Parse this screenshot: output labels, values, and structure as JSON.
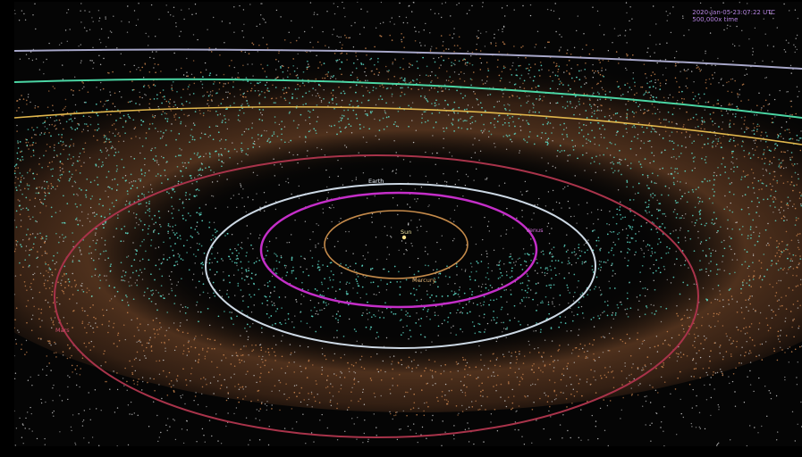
{
  "hud": {
    "timestamp": "2020-Jan-05 23:07:22 UTC",
    "speed": "500,000x time"
  },
  "labels": {
    "sun": "Sun",
    "mercury": "Mercury",
    "venus": "Venus",
    "earth": "Earth",
    "mars": "Mars"
  },
  "colors": {
    "background": "#000000",
    "asteroid_inner": "#4fd6c0",
    "asteroid_belt": "#c87a48",
    "neptune": "#a7a7c9",
    "uranus": "#4bd6a4",
    "saturn": "#e0b64c",
    "mars": "#a8334a",
    "earth": "#cdd9e5",
    "venus": "#c42ec8",
    "mercury": "#c48a4a",
    "hud_text": "#b482e0"
  }
}
